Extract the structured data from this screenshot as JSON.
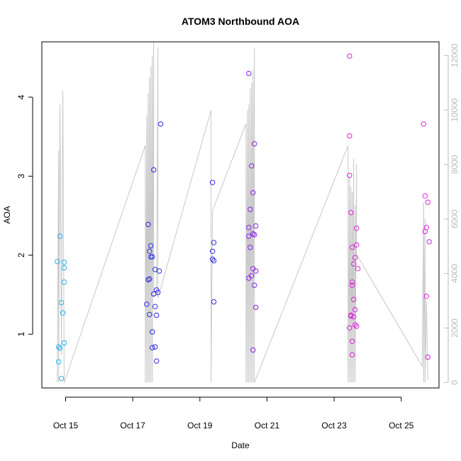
{
  "chart_data": {
    "type": "scatter",
    "title": "ATOM3 Northbound AOA",
    "xlabel": "Date",
    "ylabel": "AOA",
    "x_ticks": [
      "Oct 15",
      "Oct 17",
      "Oct 19",
      "Oct 21",
      "Oct 23",
      "Oct 25"
    ],
    "y_ticks": [
      "1",
      "2",
      "3",
      "4"
    ],
    "y2_ticks": [
      "0",
      "2000",
      "4000",
      "6000",
      "8000",
      "10000",
      "12000"
    ],
    "xlim": [
      "2015-10-14 07:00",
      "2015-10-26 03:00"
    ],
    "ylim": [
      0.32,
      4.7
    ],
    "y2lim": [
      -200,
      12500
    ],
    "grid": false,
    "legend": "none",
    "colors": {
      "early": "#2bb0ec",
      "mid": "#2e2ee6",
      "late": "#dd22dd",
      "secondary_line": "#c8c8c8",
      "secondary_axis": "#bbbbbb"
    },
    "series": [
      {
        "color": "#2bb0ec",
        "points": [
          [
            "2015-10-14 18:00",
            1.92
          ],
          [
            "2015-10-14 19:00",
            0.84
          ],
          [
            "2015-10-14 19:00",
            0.65
          ],
          [
            "2015-10-14 20:00",
            0.82
          ],
          [
            "2015-10-14 20:00",
            2.24
          ],
          [
            "2015-10-14 21:00",
            1.4
          ],
          [
            "2015-10-14 21:00",
            0.44
          ],
          [
            "2015-10-14 22:00",
            1.27
          ],
          [
            "2015-10-14 23:00",
            1.91
          ],
          [
            "2015-10-14 23:00",
            1.84
          ],
          [
            "2015-10-14 23:00",
            1.66
          ],
          [
            "2015-10-14 23:00",
            0.89
          ]
        ]
      },
      {
        "color": "#2e2ee6",
        "points": [
          [
            "2015-10-17 10:00",
            1.38
          ],
          [
            "2015-10-17 11:00",
            1.69
          ],
          [
            "2015-10-17 11:00",
            2.39
          ],
          [
            "2015-10-17 12:00",
            1.7
          ],
          [
            "2015-10-17 12:00",
            2.05
          ],
          [
            "2015-10-17 12:00",
            1.25
          ],
          [
            "2015-10-17 13:00",
            2.12
          ],
          [
            "2015-10-17 13:00",
            1.98
          ],
          [
            "2015-10-17 14:00",
            1.98
          ],
          [
            "2015-10-17 14:00",
            1.03
          ],
          [
            "2015-10-17 14:00",
            0.83
          ],
          [
            "2015-10-17 15:00",
            3.08
          ],
          [
            "2015-10-17 15:00",
            1.51
          ],
          [
            "2015-10-17 16:00",
            1.82
          ],
          [
            "2015-10-17 16:00",
            1.35
          ],
          [
            "2015-10-17 16:00",
            0.84
          ],
          [
            "2015-10-17 17:00",
            1.56
          ],
          [
            "2015-10-17 17:00",
            1.24
          ],
          [
            "2015-10-17 17:00",
            0.66
          ],
          [
            "2015-10-17 18:00",
            1.53
          ],
          [
            "2015-10-17 19:00",
            1.8
          ],
          [
            "2015-10-17 20:00",
            3.66
          ],
          [
            "2015-10-19 09:00",
            2.92
          ],
          [
            "2015-10-19 09:00",
            2.05
          ],
          [
            "2015-10-19 09:00",
            1.95
          ],
          [
            "2015-10-19 10:00",
            1.93
          ],
          [
            "2015-10-19 10:00",
            2.16
          ],
          [
            "2015-10-19 10:00",
            1.41
          ]
        ]
      },
      {
        "color": "#8a22e6",
        "points": [
          [
            "2015-10-20 11:00",
            4.3
          ],
          [
            "2015-10-20 11:00",
            2.35
          ],
          [
            "2015-10-20 11:00",
            1.71
          ],
          [
            "2015-10-20 11:00",
            2.24
          ],
          [
            "2015-10-20 12:00",
            2.1
          ],
          [
            "2015-10-20 12:00",
            2.58
          ],
          [
            "2015-10-20 13:00",
            3.13
          ],
          [
            "2015-10-20 13:00",
            1.74
          ],
          [
            "2015-10-20 14:00",
            2.27
          ],
          [
            "2015-10-20 14:00",
            1.83
          ],
          [
            "2015-10-20 14:00",
            0.8
          ],
          [
            "2015-10-20 14:00",
            2.79
          ],
          [
            "2015-10-20 15:00",
            2.26
          ],
          [
            "2015-10-20 15:00",
            1.62
          ],
          [
            "2015-10-20 15:00",
            3.41
          ],
          [
            "2015-10-20 16:00",
            1.8
          ],
          [
            "2015-10-20 16:00",
            1.34
          ],
          [
            "2015-10-20 16:00",
            2.37
          ]
        ]
      },
      {
        "color": "#dd22dd",
        "points": [
          [
            "2015-10-23 11:00",
            4.52
          ],
          [
            "2015-10-23 11:00",
            3.51
          ],
          [
            "2015-10-23 11:00",
            3.01
          ],
          [
            "2015-10-23 11:00",
            1.08
          ],
          [
            "2015-10-23 12:00",
            2.54
          ],
          [
            "2015-10-23 12:00",
            1.24
          ],
          [
            "2015-10-23 12:00",
            1.23
          ],
          [
            "2015-10-23 13:00",
            0.91
          ],
          [
            "2015-10-23 13:00",
            2.1
          ],
          [
            "2015-10-23 13:00",
            1.66
          ],
          [
            "2015-10-23 13:00",
            1.62
          ],
          [
            "2015-10-23 13:00",
            0.74
          ],
          [
            "2015-10-23 14:00",
            1.22
          ],
          [
            "2015-10-23 14:00",
            1.89
          ],
          [
            "2015-10-23 14:00",
            1.44
          ],
          [
            "2015-10-23 15:00",
            1.97
          ],
          [
            "2015-10-23 15:00",
            1.31
          ],
          [
            "2015-10-23 15:00",
            1.12
          ],
          [
            "2015-10-23 16:00",
            2.34
          ],
          [
            "2015-10-23 16:00",
            1.1
          ],
          [
            "2015-10-23 16:00",
            2.13
          ],
          [
            "2015-10-23 17:00",
            1.83
          ],
          [
            "2015-10-25 16:00",
            3.66
          ],
          [
            "2015-10-25 17:00",
            2.3
          ],
          [
            "2015-10-25 17:00",
            2.75
          ],
          [
            "2015-10-25 18:00",
            1.48
          ],
          [
            "2015-10-25 18:00",
            2.35
          ],
          [
            "2015-10-25 19:00",
            2.67
          ],
          [
            "2015-10-25 19:00",
            0.71
          ],
          [
            "2015-10-25 20:00",
            2.17
          ]
        ]
      }
    ],
    "secondary_line": [
      [
        "2015-10-14 18:00",
        0
      ],
      [
        "2015-10-14 19:00",
        8500
      ],
      [
        "2015-10-14 19:00",
        0
      ],
      [
        "2015-10-14 20:00",
        10200
      ],
      [
        "2015-10-14 21:00",
        1000
      ],
      [
        "2015-10-14 22:00",
        10700
      ],
      [
        "2015-10-14 23:00",
        0
      ],
      [
        "2015-10-17 09:00",
        8700
      ],
      [
        "2015-10-17 09:00",
        0
      ],
      [
        "2015-10-17 10:00",
        9800
      ],
      [
        "2015-10-17 10:00",
        0
      ],
      [
        "2015-10-17 11:00",
        10600
      ],
      [
        "2015-10-17 11:00",
        0
      ],
      [
        "2015-10-17 12:00",
        11200
      ],
      [
        "2015-10-17 12:00",
        0
      ],
      [
        "2015-10-17 13:00",
        11600
      ],
      [
        "2015-10-17 13:00",
        0
      ],
      [
        "2015-10-17 14:00",
        12000
      ],
      [
        "2015-10-17 14:00",
        0
      ],
      [
        "2015-10-17 15:00",
        12500
      ],
      [
        "2015-10-17 15:00",
        3200
      ],
      [
        "2015-10-17 17:00",
        3200
      ],
      [
        "2015-10-17 18:00",
        12300
      ],
      [
        "2015-10-17 18:00",
        3100
      ],
      [
        "2015-10-19 08:00",
        10000
      ],
      [
        "2015-10-19 08:00",
        0
      ],
      [
        "2015-10-19 09:00",
        6300
      ],
      [
        "2015-10-20 09:00",
        9500
      ],
      [
        "2015-10-20 09:00",
        0
      ],
      [
        "2015-10-20 10:00",
        10000
      ],
      [
        "2015-10-20 10:00",
        0
      ],
      [
        "2015-10-20 11:00",
        10200
      ],
      [
        "2015-10-20 11:00",
        0
      ],
      [
        "2015-10-20 12:00",
        10800
      ],
      [
        "2015-10-20 12:00",
        0
      ],
      [
        "2015-10-20 13:00",
        11000
      ],
      [
        "2015-10-20 13:00",
        0
      ],
      [
        "2015-10-20 14:00",
        11500
      ],
      [
        "2015-10-20 14:00",
        0
      ],
      [
        "2015-10-20 15:00",
        12300
      ],
      [
        "2015-10-20 15:00",
        0
      ],
      [
        "2015-10-23 10:00",
        8700
      ],
      [
        "2015-10-23 10:00",
        0
      ],
      [
        "2015-10-23 11:00",
        7600
      ],
      [
        "2015-10-23 11:00",
        0
      ],
      [
        "2015-10-23 12:00",
        7200
      ],
      [
        "2015-10-23 12:00",
        0
      ],
      [
        "2015-10-23 13:00",
        7000
      ],
      [
        "2015-10-23 13:00",
        0
      ],
      [
        "2015-10-23 14:00",
        8200
      ],
      [
        "2015-10-23 14:00",
        0
      ],
      [
        "2015-10-23 15:00",
        6500
      ],
      [
        "2015-10-23 15:00",
        0
      ],
      [
        "2015-10-23 16:00",
        8000
      ],
      [
        "2015-10-23 16:00",
        4700
      ],
      [
        "2015-10-25 15:00",
        600
      ],
      [
        "2015-10-25 16:00",
        6600
      ],
      [
        "2015-10-25 16:00",
        0
      ],
      [
        "2015-10-25 17:00",
        6000
      ],
      [
        "2015-10-25 17:00",
        0
      ],
      [
        "2015-10-25 18:00",
        3000
      ],
      [
        "2015-10-25 19:00",
        100
      ]
    ]
  }
}
